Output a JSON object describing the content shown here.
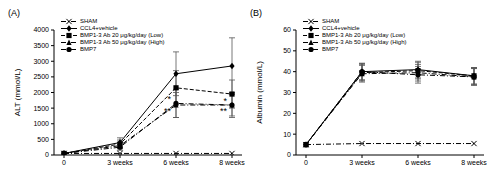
{
  "chart_data": [
    {
      "type": "line",
      "title": "(A)",
      "y_label": "ALT (mmol/L)",
      "categories": [
        "0",
        "3 weeks",
        "6 weeks",
        "8 weeks"
      ],
      "ylim": [
        0,
        4000
      ],
      "yticks": [
        0,
        500,
        1000,
        1500,
        2000,
        2500,
        3000,
        3500,
        4000
      ],
      "legend": "upper left",
      "series": [
        {
          "name": "SHAM",
          "color": "#000000",
          "marker": "x",
          "line_style": "dashdot",
          "values": [
            50,
            50,
            50,
            50
          ]
        },
        {
          "name": "CCL4+vehicle",
          "color": "#000000",
          "marker": "diamond",
          "line_style": "solid",
          "values": [
            50,
            400,
            2600,
            2850
          ],
          "errors": [
            0,
            150,
            700,
            900
          ]
        },
        {
          "name": "BMP1-3 Ab 20 μg/kg/day (Low)",
          "color": "#000000",
          "marker": "square",
          "line_style": "dashed",
          "values": [
            50,
            350,
            2150,
            1950
          ],
          "errors": [
            0,
            130,
            550,
            450
          ]
        },
        {
          "name": "BMP1-3 Ab 50 μg/kg/day (High)",
          "color": "#000000",
          "marker": "triangle",
          "line_style": "dashdot",
          "values": [
            50,
            300,
            1600,
            1600
          ],
          "errors": [
            0,
            100,
            400,
            350
          ]
        },
        {
          "name": "BMP7",
          "color": "#000000",
          "marker": "circle",
          "line_style": "dashdot",
          "values": [
            50,
            250,
            1650,
            1600
          ],
          "errors": [
            0,
            100,
            450,
            400
          ]
        }
      ],
      "annotations": [
        {
          "text": "*",
          "x": "6 weeks",
          "y": 1800
        },
        {
          "text": "**",
          "x": "6 weeks",
          "y": 1400
        },
        {
          "text": "*",
          "x": "8 weeks",
          "y": 1750
        },
        {
          "text": "**",
          "x": "8 weeks",
          "y": 1400
        }
      ]
    },
    {
      "type": "line",
      "title": "(B)",
      "y_label": "Albumin (mmol/L)",
      "categories": [
        "0",
        "3 weeks",
        "6 weeks",
        "8 weeks"
      ],
      "ylim": [
        0,
        60
      ],
      "yticks": [
        0,
        10,
        20,
        30,
        40,
        50,
        60
      ],
      "legend": "upper left",
      "series": [
        {
          "name": "SHAM",
          "color": "#000000",
          "marker": "x",
          "line_style": "dashdot",
          "values": [
            5,
            5.5,
            5.5,
            5.5
          ]
        },
        {
          "name": "CCL4+vehicle",
          "color": "#000000",
          "marker": "diamond",
          "line_style": "solid",
          "values": [
            5,
            40,
            41,
            38
          ],
          "errors": [
            0,
            4,
            4,
            4
          ]
        },
        {
          "name": "BMP1-3 Ab 20 μg/kg/day (Low)",
          "color": "#000000",
          "marker": "square",
          "line_style": "dashed",
          "values": [
            5,
            39.5,
            40.5,
            38
          ],
          "errors": [
            0,
            4,
            4,
            4
          ]
        },
        {
          "name": "BMP1-3 Ab 50 μg/kg/day (High)",
          "color": "#000000",
          "marker": "triangle",
          "line_style": "dashdot",
          "values": [
            5,
            39,
            39.5,
            37.5
          ],
          "errors": [
            0,
            4,
            4,
            4
          ]
        },
        {
          "name": "BMP7",
          "color": "#000000",
          "marker": "circle",
          "line_style": "dashdot",
          "values": [
            5,
            40,
            38.5,
            37.5
          ],
          "errors": [
            0,
            4,
            4,
            4
          ]
        }
      ]
    }
  ]
}
